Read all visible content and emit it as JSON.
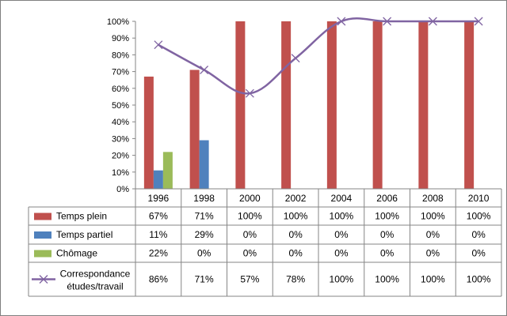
{
  "chart_data": {
    "type": "bar",
    "categories": [
      "1996",
      "1998",
      "2000",
      "2002",
      "2004",
      "2006",
      "2008",
      "2010"
    ],
    "ylim": [
      0,
      100
    ],
    "y_ticks": [
      "0%",
      "10%",
      "20%",
      "30%",
      "40%",
      "50%",
      "60%",
      "70%",
      "80%",
      "90%",
      "100%"
    ],
    "grid": false,
    "series": [
      {
        "name": "Temps plein",
        "kind": "bar",
        "color": "#c0504d",
        "values": [
          67,
          71,
          100,
          100,
          100,
          100,
          100,
          100
        ],
        "labels": [
          "67%",
          "71%",
          "100%",
          "100%",
          "100%",
          "100%",
          "100%",
          "100%"
        ]
      },
      {
        "name": "Temps partiel",
        "kind": "bar",
        "color": "#4f81bd",
        "values": [
          11,
          29,
          0,
          0,
          0,
          0,
          0,
          0
        ],
        "labels": [
          "11%",
          "29%",
          "0%",
          "0%",
          "0%",
          "0%",
          "0%",
          "0%"
        ]
      },
      {
        "name": "Chômage",
        "kind": "bar",
        "color": "#9bbb59",
        "values": [
          22,
          0,
          0,
          0,
          0,
          0,
          0,
          0
        ],
        "labels": [
          "22%",
          "0%",
          "0%",
          "0%",
          "0%",
          "0%",
          "0%",
          "0%"
        ]
      },
      {
        "name": "Correspondance études/travail",
        "name_lines": [
          "Correspondance",
          "études/travail"
        ],
        "kind": "line",
        "color": "#8064a2",
        "values": [
          86,
          71,
          57,
          78,
          100,
          100,
          100,
          100
        ],
        "labels": [
          "86%",
          "71%",
          "57%",
          "78%",
          "100%",
          "100%",
          "100%",
          "100%"
        ]
      }
    ]
  }
}
